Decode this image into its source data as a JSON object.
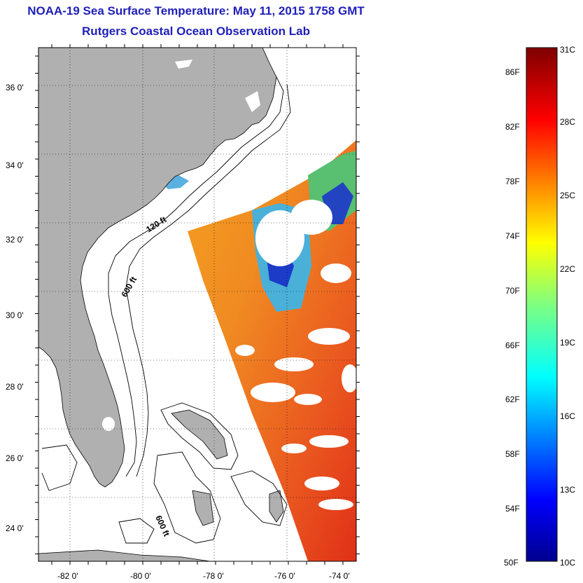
{
  "header": {
    "title": "NOAA-19 Sea Surface Temperature:  May 11, 2015 1758 GMT",
    "subtitle": "Rutgers Coastal Ocean Observation Lab"
  },
  "map": {
    "lat_ticks": [
      "36 0'",
      "34 0'",
      "32 0'",
      "30 0'",
      "28 0'",
      "26 0'",
      "24 0'"
    ],
    "lon_ticks": [
      "-82 0'",
      "-80 0'",
      "-78 0'",
      "-76 0'",
      "-74 0'"
    ],
    "contour_labels": {
      "c120": "120 ft",
      "c600a": "600 ft",
      "c600b": "600 ft"
    },
    "land_color": "#b0b0b0"
  },
  "colorbar": {
    "fahrenheit": [
      "86F",
      "82F",
      "78F",
      "74F",
      "70F",
      "66F",
      "62F",
      "58F",
      "54F",
      "50F"
    ],
    "celsius": [
      "31C",
      "28C",
      "25C",
      "22C",
      "19C",
      "16C",
      "13C",
      "10C"
    ],
    "min_label": "10C",
    "max_label": "31C"
  }
}
